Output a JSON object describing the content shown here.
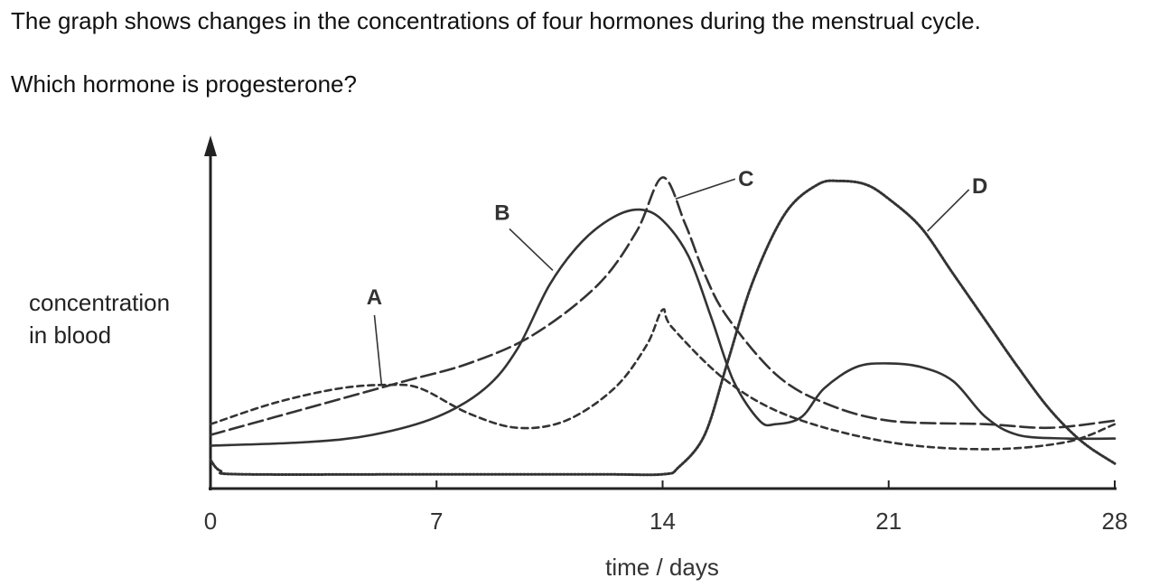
{
  "question": {
    "line1": "The graph shows changes in the concentrations of four hormones during the menstrual cycle.",
    "line2": "Which hormone is progesterone?"
  },
  "chart_data": {
    "type": "line",
    "title": "",
    "xlabel": "time / days",
    "ylabel": [
      "concentration",
      "in blood"
    ],
    "xlim": [
      0,
      28
    ],
    "ylim": [
      0,
      100
    ],
    "xticks": [
      "0",
      "7",
      "14",
      "21",
      "28"
    ],
    "grid": false,
    "legend": "none",
    "series": [
      {
        "name": "A",
        "style": "short-dash",
        "x": [
          0,
          2,
          4,
          5.5,
          6.5,
          8,
          9.5,
          11,
          12.5,
          13.5,
          14,
          14.3,
          16,
          18,
          21,
          24,
          26.5,
          28
        ],
        "y": [
          18,
          24,
          28,
          29,
          28,
          21,
          17,
          19,
          28,
          40,
          50,
          45,
          30,
          20,
          13,
          11,
          13,
          18
        ]
      },
      {
        "name": "B",
        "style": "solid",
        "x": [
          0,
          3,
          5,
          7,
          8.5,
          9.5,
          10.5,
          11.5,
          12.5,
          13.3,
          14,
          14.8,
          15.5,
          16.2,
          17,
          17.5,
          18.3,
          19,
          20,
          21,
          22,
          23,
          24,
          25,
          26.5,
          28
        ],
        "y": [
          12,
          13,
          15,
          20,
          28,
          39,
          57,
          69,
          76,
          78,
          75,
          65,
          48,
          30,
          19,
          18,
          20,
          28,
          34,
          35,
          34,
          30,
          20,
          15,
          14,
          14
        ]
      },
      {
        "name": "C",
        "style": "long-dash",
        "x": [
          0,
          2,
          4,
          6,
          8,
          10,
          12,
          13.2,
          14,
          14.7,
          15.3,
          16,
          17.5,
          19,
          21,
          24,
          26,
          28
        ],
        "y": [
          15,
          20,
          25,
          30,
          35,
          43,
          57,
          72,
          87,
          74,
          60,
          48,
          32,
          24,
          19,
          18,
          17,
          19
        ]
      },
      {
        "name": "D",
        "style": "dotted",
        "x": [
          0,
          0.3,
          1,
          7,
          12,
          14,
          14.5,
          15.3,
          16,
          16.8,
          17.8,
          18.8,
          19.5,
          20.3,
          21,
          22,
          23,
          24,
          25,
          26,
          27,
          28
        ],
        "y": [
          8,
          5,
          4,
          4,
          4,
          4,
          6,
          15,
          35,
          58,
          77,
          85,
          86,
          85,
          81,
          73,
          60,
          47,
          34,
          22,
          13,
          7
        ]
      }
    ],
    "annotations": [
      "A",
      "B",
      "C",
      "D"
    ]
  }
}
